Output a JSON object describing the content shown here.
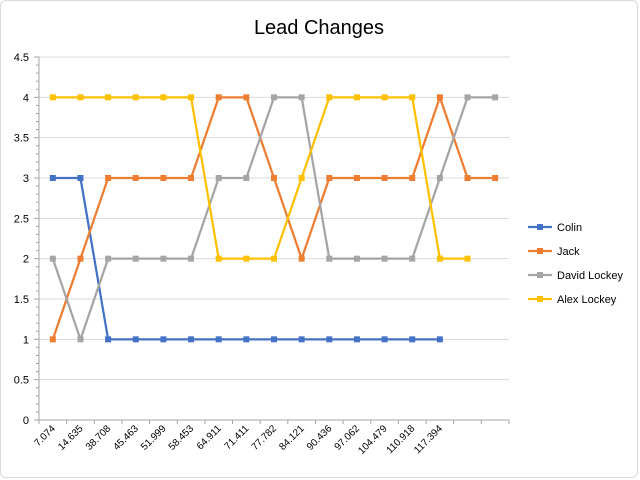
{
  "chart_data": {
    "type": "line",
    "title": "Lead Changes",
    "xlabel": "",
    "ylabel": "",
    "ylim": [
      0,
      4.5
    ],
    "y_major_step": 0.5,
    "y_minor_step": 0.1,
    "y_tick_labels": [
      "0",
      "0.5",
      "1",
      "1.5",
      "2",
      "2.5",
      "3",
      "3.5",
      "4",
      "4.5"
    ],
    "x_category_count": 17,
    "x_tick_labels": [
      "7.074",
      "14.635",
      "38.708",
      "45.463",
      "51.999",
      "58.453",
      "64.911",
      "71.411",
      "77.782",
      "84.121",
      "90.436",
      "97.062",
      "104.479",
      "110.918",
      "117.394",
      "",
      ""
    ],
    "grid": true,
    "legend_position": "right",
    "series": [
      {
        "name": "Colin",
        "color": "#4472C4",
        "values": [
          3,
          3,
          1,
          1,
          1,
          1,
          1,
          1,
          1,
          1,
          1,
          1,
          1,
          1,
          1,
          null,
          null
        ]
      },
      {
        "name": "Jack",
        "color": "#ED7D31",
        "values": [
          1,
          2,
          3,
          3,
          3,
          3,
          4,
          4,
          3,
          2,
          3,
          3,
          3,
          3,
          4,
          3,
          3
        ]
      },
      {
        "name": "David Lockey",
        "color": "#A5A5A5",
        "values": [
          2,
          1,
          2,
          2,
          2,
          2,
          3,
          3,
          4,
          4,
          2,
          2,
          2,
          2,
          3,
          4,
          4
        ]
      },
      {
        "name": "Alex Lockey",
        "color": "#FFC000",
        "values": [
          4,
          4,
          4,
          4,
          4,
          4,
          2,
          2,
          2,
          3,
          4,
          4,
          4,
          4,
          2,
          2,
          null
        ]
      }
    ]
  }
}
